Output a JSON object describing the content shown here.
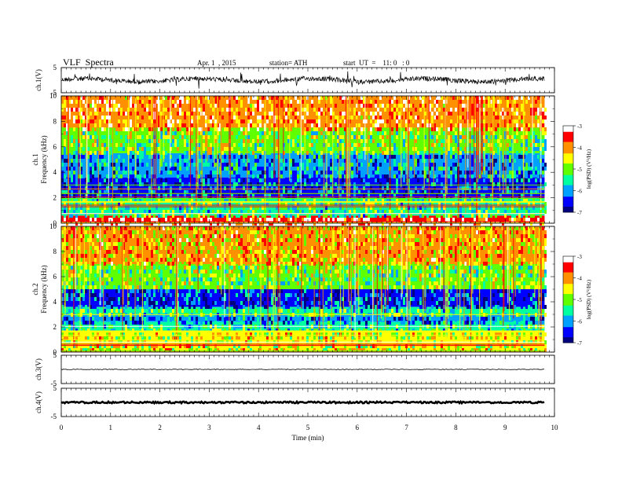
{
  "header": {
    "title": "VLF  Spectra",
    "date": "Apr. 1  , 2015",
    "station": "station= ATH",
    "start": "start  UT  =    11: 0   : 0"
  },
  "chart_data": [
    {
      "type": "line",
      "panel": "ch1-waveform",
      "ylabel": "ch.1(V)",
      "ylim": [
        -5,
        5
      ],
      "yticks": [
        "5",
        "-5"
      ],
      "xlim": [
        0,
        10
      ],
      "series_extent_min": [
        0,
        9.8
      ],
      "level_V": 0
    },
    {
      "type": "heatmap",
      "panel": "ch1-spectrogram",
      "ylabel_channel": "ch.1",
      "ylabel": "Frequency (kHz)",
      "ylim": [
        0,
        10
      ],
      "yticks": [
        "0",
        "2",
        "4",
        "6",
        "8",
        "10"
      ],
      "xlim": [
        0,
        10
      ],
      "data_extent_min": [
        0,
        9.8
      ],
      "colorbar": {
        "label": "log(PSD) (V²/Hz)",
        "range": [
          -7,
          -3
        ],
        "ticks": [
          "-3",
          "-4",
          "-5",
          "-6",
          "-7"
        ],
        "colors": [
          "#000080",
          "#0000ff",
          "#00a0ff",
          "#00ffa0",
          "#60ff00",
          "#ffff00",
          "#ff9000",
          "#ff0000",
          "#ffffff"
        ]
      },
      "band_levels_by_frequency_kHz": [
        {
          "from": 0,
          "to": 0.6,
          "logPSD": -3.3
        },
        {
          "from": 0.6,
          "to": 2.0,
          "logPSD": -5.3
        },
        {
          "from": 2.0,
          "to": 3.6,
          "logPSD": -6.3
        },
        {
          "from": 3.6,
          "to": 5.5,
          "logPSD": -6.0
        },
        {
          "from": 5.5,
          "to": 7.5,
          "logPSD": -5.0
        },
        {
          "from": 7.5,
          "to": 10,
          "logPSD": -3.8
        }
      ]
    },
    {
      "type": "heatmap",
      "panel": "ch2-spectrogram",
      "ylabel_channel": "ch.2",
      "ylabel": "Frequency (kHz)",
      "ylim": [
        0,
        10
      ],
      "yticks": [
        "0",
        "2",
        "4",
        "6",
        "8",
        "10"
      ],
      "xlim": [
        0,
        10
      ],
      "data_extent_min": [
        0,
        9.8
      ],
      "colorbar": {
        "label": "log(PSD) (V²/Hz)",
        "range": [
          -7,
          -3
        ],
        "ticks": [
          "-3",
          "-4",
          "-5",
          "-6",
          "-7"
        ],
        "colors": [
          "#000080",
          "#0000ff",
          "#00a0ff",
          "#00ffa0",
          "#60ff00",
          "#ffff00",
          "#ff9000",
          "#ff0000",
          "#ffffff"
        ]
      },
      "band_levels_by_frequency_kHz": [
        {
          "from": 0,
          "to": 1.6,
          "logPSD": -4.6
        },
        {
          "from": 1.6,
          "to": 2.4,
          "logPSD": -5.4
        },
        {
          "from": 2.4,
          "to": 3.0,
          "logPSD": -6.2
        },
        {
          "from": 3.0,
          "to": 3.6,
          "logPSD": -5.3
        },
        {
          "from": 3.6,
          "to": 5.0,
          "logPSD": -6.4
        },
        {
          "from": 5.0,
          "to": 7.0,
          "logPSD": -5.0
        },
        {
          "from": 7.0,
          "to": 10,
          "logPSD": -4.2
        }
      ]
    },
    {
      "type": "line",
      "panel": "ch3-waveform",
      "ylabel": "ch.3(V)",
      "ylim": [
        -5,
        5
      ],
      "yticks": [
        "5",
        "-5"
      ],
      "xlim": [
        0,
        10
      ],
      "series_extent_min": [
        0,
        9.8
      ],
      "level_V": 0
    },
    {
      "type": "line",
      "panel": "ch4-waveform",
      "ylabel": "ch.4(V)",
      "ylim": [
        -5,
        5
      ],
      "yticks": [
        "5",
        "-5"
      ],
      "xlim": [
        0,
        10
      ],
      "series_extent_min": [
        0,
        9.8
      ],
      "level_V": 0
    }
  ],
  "xaxis": {
    "label": "Time  (min)",
    "ticks": [
      "0",
      "1",
      "2",
      "3",
      "4",
      "5",
      "6",
      "7",
      "8",
      "9",
      "10"
    ],
    "range": [
      0,
      10
    ]
  }
}
